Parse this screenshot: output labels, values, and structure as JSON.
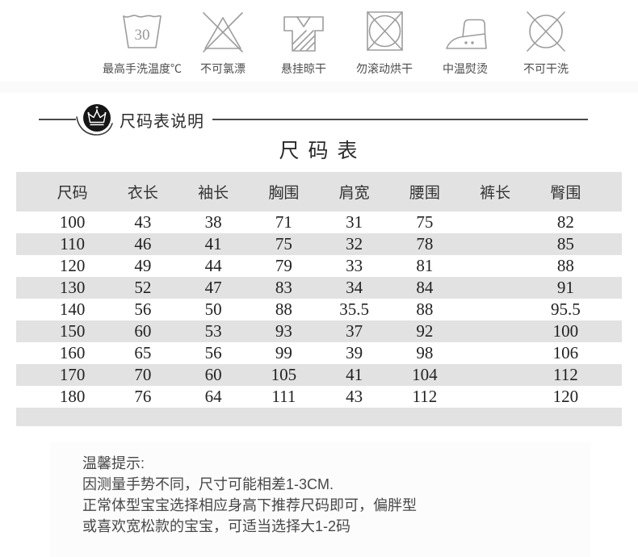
{
  "colors": {
    "stripe": "#e2e2e2",
    "icon_stroke": "#9d9d9d",
    "rule": "#4a4a4a",
    "badge_bg": "#151515"
  },
  "care_icons": [
    {
      "name": "handwash-30-icon",
      "label": "最高手洗温度℃",
      "value": "30"
    },
    {
      "name": "no-bleach-icon",
      "label": "不可氯漂"
    },
    {
      "name": "hang-dry-icon",
      "label": "悬挂晾干"
    },
    {
      "name": "no-tumble-dry-icon",
      "label": "勿滚动烘干"
    },
    {
      "name": "medium-iron-icon",
      "label": "中温熨烫"
    },
    {
      "name": "no-dry-clean-icon",
      "label": "不可干洗"
    }
  ],
  "section_header": {
    "label": "尺码表说明"
  },
  "size_chart": {
    "title": "尺 码 表",
    "headers": [
      "尺码",
      "衣长",
      "袖长",
      "胸围",
      "肩宽",
      "腰围",
      "裤长",
      "臀围"
    ],
    "rows": [
      [
        "100",
        "43",
        "38",
        "71",
        "31",
        "75",
        "",
        "82"
      ],
      [
        "110",
        "46",
        "41",
        "75",
        "32",
        "78",
        "",
        "85"
      ],
      [
        "120",
        "49",
        "44",
        "79",
        "33",
        "81",
        "",
        "88"
      ],
      [
        "130",
        "52",
        "47",
        "83",
        "34",
        "84",
        "",
        "91"
      ],
      [
        "140",
        "56",
        "50",
        "88",
        "35.5",
        "88",
        "",
        "95.5"
      ],
      [
        "150",
        "60",
        "53",
        "93",
        "37",
        "92",
        "",
        "100"
      ],
      [
        "160",
        "65",
        "56",
        "99",
        "39",
        "98",
        "",
        "106"
      ],
      [
        "170",
        "70",
        "60",
        "105",
        "41",
        "104",
        "",
        "112"
      ],
      [
        "180",
        "76",
        "64",
        "111",
        "43",
        "112",
        "",
        "120"
      ]
    ]
  },
  "tips": {
    "title": "温馨提示:",
    "lines": [
      "因测量手势不同，尺寸可能相差1-3CM.",
      "正常体型宝宝选择相应身高下推荐尺码即可，偏胖型",
      "或喜欢宽松款的宝宝，可适当选择大1-2码"
    ]
  }
}
